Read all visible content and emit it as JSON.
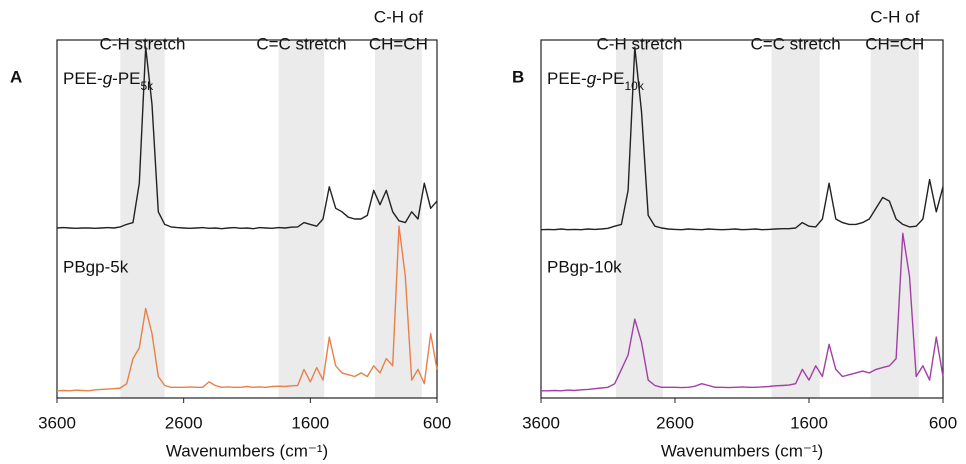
{
  "chart_data": [
    {
      "type": "line",
      "panel_label": "A",
      "xlabel": "Wavenumbers (cm⁻¹)",
      "xlim": [
        3600,
        600
      ],
      "xticks": [
        3600,
        2600,
        1600,
        600
      ],
      "ylim": [
        0,
        100
      ],
      "bands": [
        {
          "lines": [
            "C-H stretch"
          ],
          "from": 3100,
          "to": 2750,
          "color": "#ebebeb"
        },
        {
          "lines": [
            "C=C stretch"
          ],
          "from": 1850,
          "to": 1490,
          "color": "#ebebeb"
        },
        {
          "lines": [
            "C-H of",
            "CH=CH"
          ],
          "from": 1090,
          "to": 720,
          "color": "#ebebeb"
        }
      ],
      "x": [
        3600,
        3550,
        3500,
        3450,
        3400,
        3350,
        3300,
        3250,
        3200,
        3150,
        3100,
        3050,
        3000,
        2950,
        2900,
        2850,
        2800,
        2750,
        2700,
        2650,
        2600,
        2550,
        2500,
        2450,
        2400,
        2350,
        2300,
        2250,
        2200,
        2150,
        2100,
        2050,
        2000,
        1950,
        1900,
        1850,
        1800,
        1750,
        1700,
        1650,
        1600,
        1550,
        1500,
        1450,
        1400,
        1350,
        1300,
        1250,
        1200,
        1150,
        1100,
        1050,
        1000,
        950,
        900,
        850,
        800,
        750,
        700,
        650,
        600
      ],
      "series": [
        {
          "name": "PEE-g-PE5k",
          "color": "#222222",
          "values": [
            47.5,
            47.6,
            47.5,
            47.4,
            47.5,
            47.5,
            47.4,
            47.5,
            47.6,
            47.5,
            47.8,
            48.5,
            49,
            60,
            98,
            82,
            52,
            48.5,
            47.8,
            47.6,
            47.5,
            47.4,
            47.5,
            47.6,
            47.4,
            47.5,
            47.3,
            47.5,
            47.6,
            47.4,
            47.5,
            47.3,
            47.6,
            47.5,
            47.4,
            47.6,
            47.5,
            47.7,
            47.8,
            49,
            48.5,
            48,
            50,
            59,
            53,
            52,
            50.5,
            50,
            50,
            51,
            58,
            54,
            58,
            52,
            49.5,
            49,
            52,
            50,
            60,
            53,
            55
          ]
        },
        {
          "name": "PBgp-5k",
          "color": "#e8804a",
          "values": [
            2,
            2.1,
            2,
            2.2,
            2.1,
            2,
            2.3,
            2.4,
            2.5,
            2.6,
            2.8,
            4,
            11,
            14,
            25,
            18,
            6,
            3.5,
            3,
            3,
            3,
            3.1,
            3,
            3,
            4.5,
            3.5,
            3,
            3.1,
            3,
            3,
            3.2,
            3,
            3.1,
            3,
            3.2,
            3.3,
            3.2,
            3.4,
            3.5,
            8,
            4.5,
            8.5,
            5,
            17,
            9,
            7,
            6.5,
            6,
            7,
            6,
            9,
            7,
            11,
            9,
            48,
            34,
            5,
            8,
            4,
            18,
            8
          ]
        }
      ]
    },
    {
      "type": "line",
      "panel_label": "B",
      "xlabel": "Wavenumbers (cm⁻¹)",
      "xlim": [
        3600,
        600
      ],
      "xticks": [
        3600,
        2600,
        1600,
        600
      ],
      "ylim": [
        0,
        100
      ],
      "bands": [
        {
          "lines": [
            "C-H stretch"
          ],
          "from": 3040,
          "to": 2690,
          "color": "#ebebeb"
        },
        {
          "lines": [
            "C=C stretch"
          ],
          "from": 1880,
          "to": 1520,
          "color": "#ebebeb"
        },
        {
          "lines": [
            "C-H of",
            "CH=CH"
          ],
          "from": 1140,
          "to": 780,
          "color": "#ebebeb"
        }
      ],
      "x": [
        3600,
        3550,
        3500,
        3450,
        3400,
        3350,
        3300,
        3250,
        3200,
        3150,
        3100,
        3050,
        3000,
        2950,
        2900,
        2850,
        2800,
        2750,
        2700,
        2650,
        2600,
        2550,
        2500,
        2450,
        2400,
        2350,
        2300,
        2250,
        2200,
        2150,
        2100,
        2050,
        2000,
        1950,
        1900,
        1850,
        1800,
        1750,
        1700,
        1650,
        1600,
        1550,
        1500,
        1450,
        1400,
        1350,
        1300,
        1250,
        1200,
        1150,
        1100,
        1050,
        1000,
        950,
        900,
        850,
        800,
        750,
        700,
        650,
        600
      ],
      "series": [
        {
          "name": "PEE-g-PE10k",
          "color": "#222222",
          "values": [
            47,
            47.1,
            47,
            47.2,
            47,
            47.1,
            47,
            47.2,
            47.1,
            47.2,
            47.4,
            48,
            48.5,
            58,
            98,
            80,
            51,
            48,
            47.5,
            47.2,
            47.1,
            47,
            47.2,
            47.1,
            47,
            47.2,
            47.1,
            47,
            47.1,
            47.2,
            47,
            47.1,
            47.2,
            47,
            47.1,
            47.2,
            47.3,
            47.3,
            47.5,
            49,
            48,
            47.8,
            50,
            60,
            50,
            49,
            48.5,
            48.5,
            49,
            50,
            53,
            56,
            55,
            50,
            48.5,
            47.8,
            48,
            50,
            61,
            52,
            59
          ]
        },
        {
          "name": "PBgp-10k",
          "color": "#a23fa6",
          "values": [
            2,
            2,
            2.1,
            2,
            2.2,
            2.1,
            2.3,
            2.4,
            2.6,
            2.8,
            3,
            4,
            8,
            12,
            22,
            15.6,
            5,
            3.5,
            3,
            3,
            3,
            2.9,
            3,
            3.3,
            4,
            3.5,
            3,
            3,
            2.9,
            3,
            3.1,
            3,
            3,
            3.1,
            3.2,
            3.4,
            3.5,
            3.6,
            4,
            8,
            5,
            9,
            6,
            15,
            8,
            6,
            6.5,
            7,
            7.5,
            7,
            8,
            8.5,
            9,
            11,
            46,
            34,
            6,
            9,
            5,
            17,
            6
          ]
        }
      ]
    }
  ]
}
